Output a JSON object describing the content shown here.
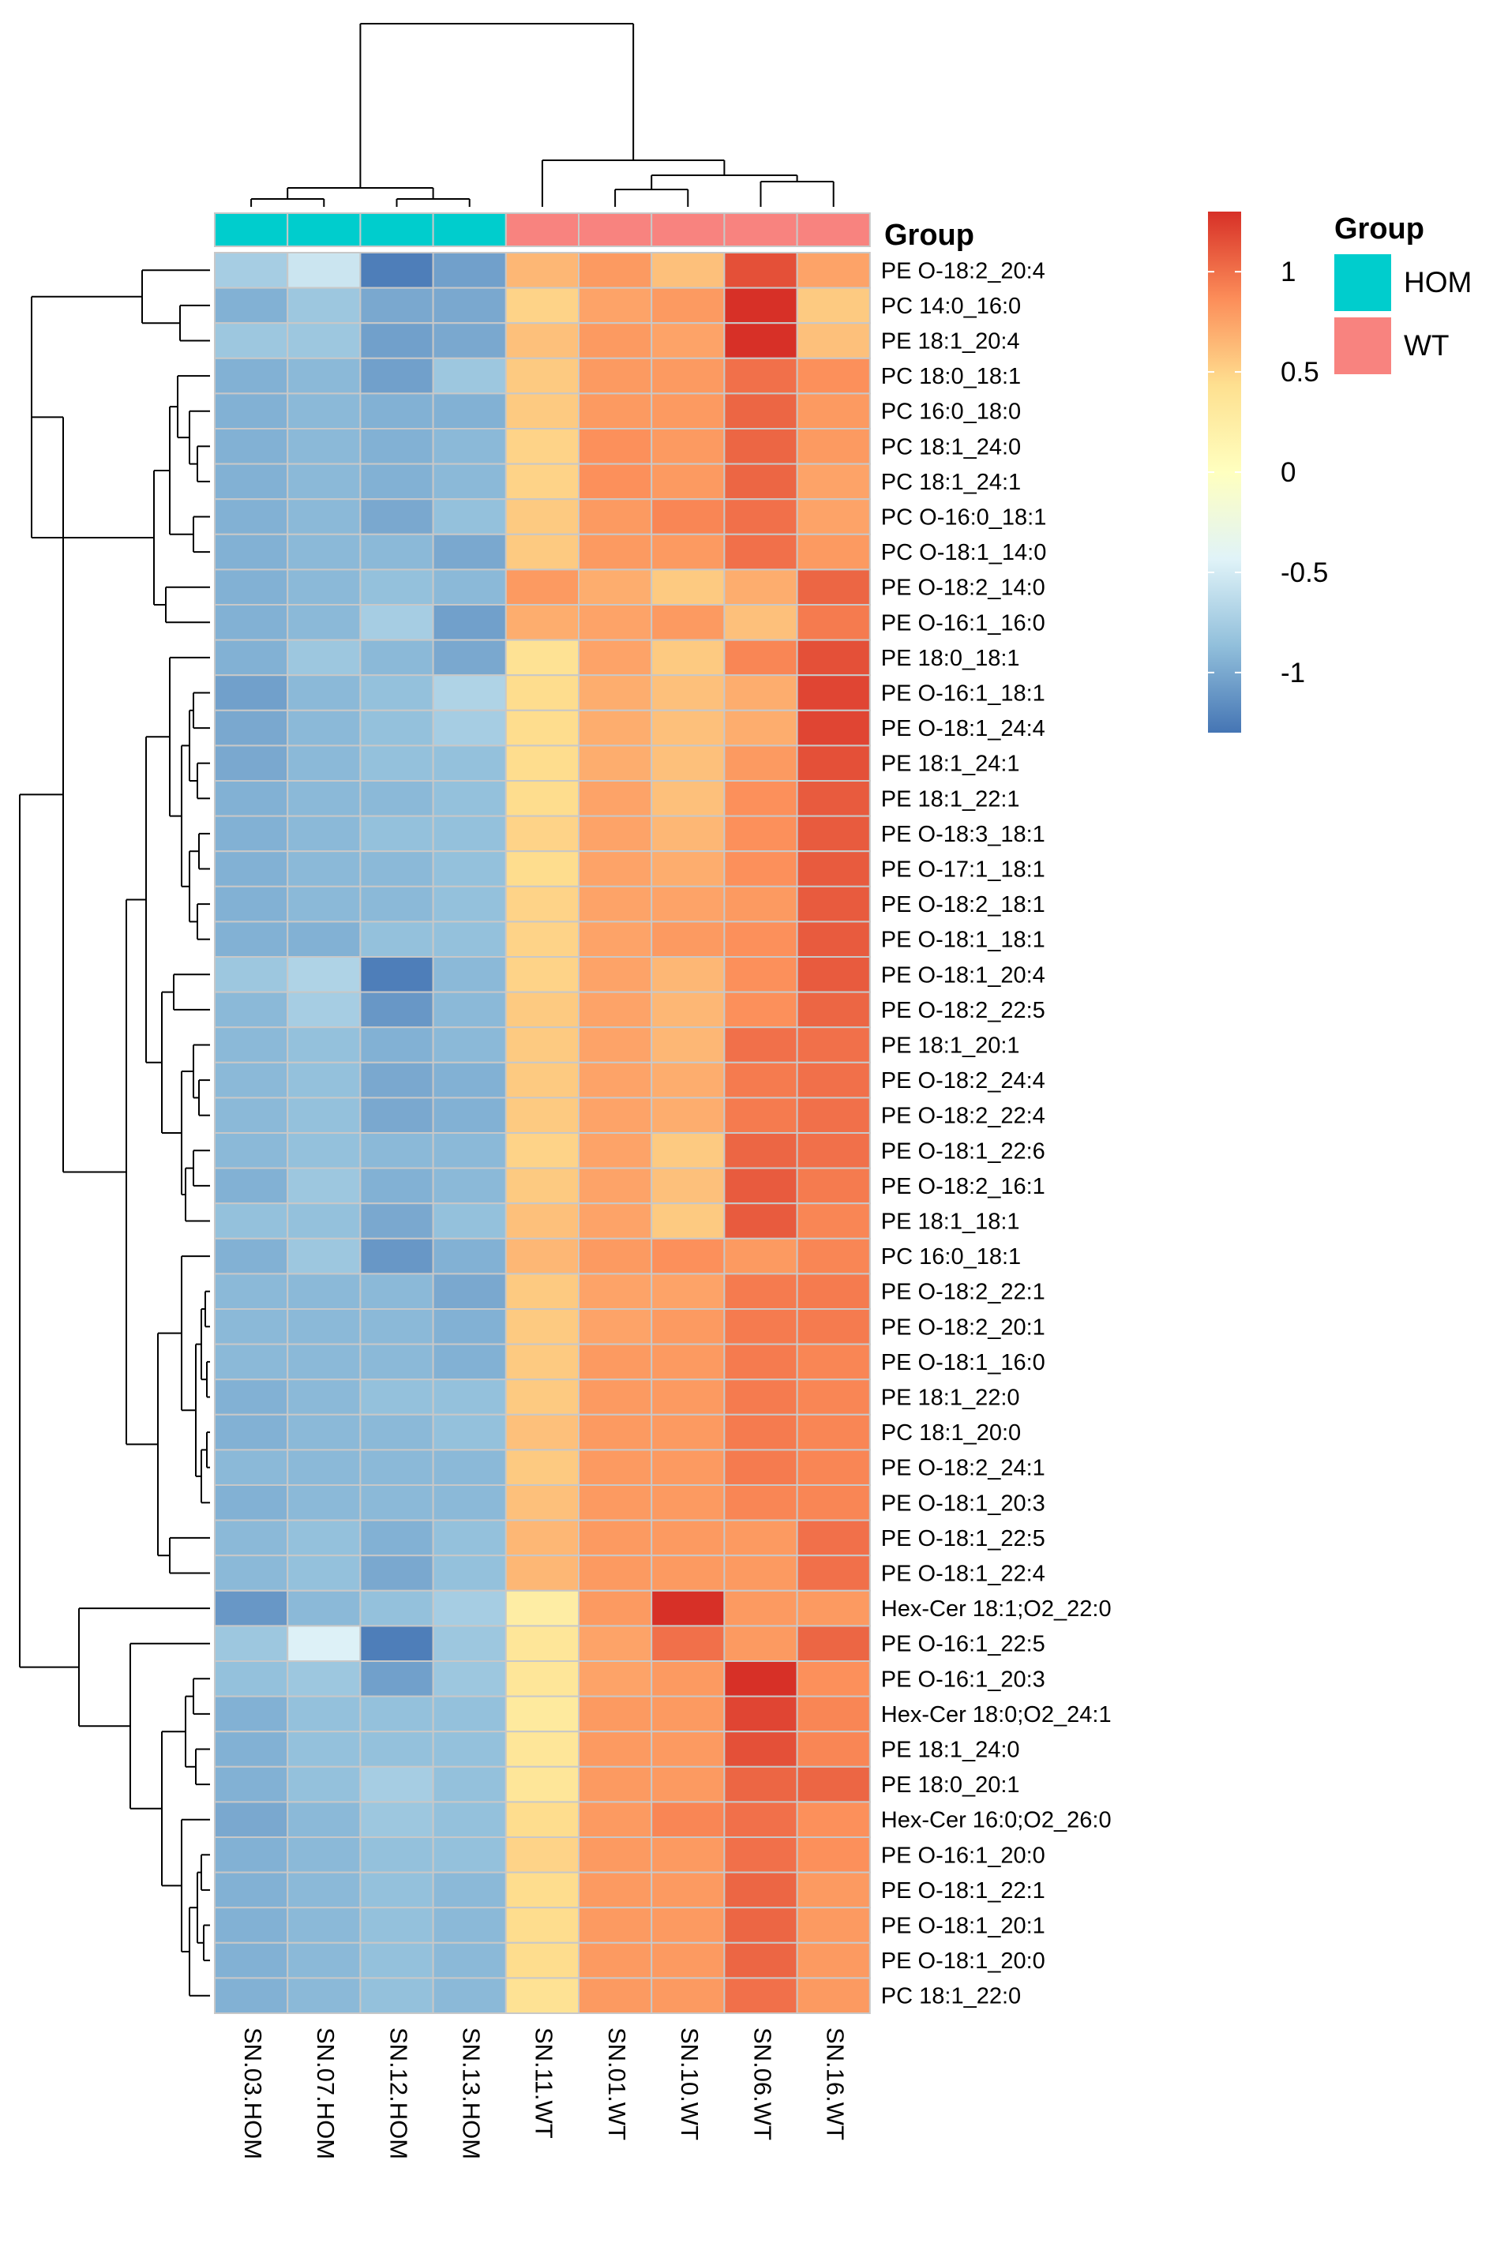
{
  "chart_data": {
    "type": "heatmap",
    "title": "",
    "columns": [
      "SN.03.HOM",
      "SN.07.HOM",
      "SN.12.HOM",
      "SN.13.HOM",
      "SN.11.WT",
      "SN.01.WT",
      "SN.10.WT",
      "SN.06.WT",
      "SN.16.WT"
    ],
    "column_groups": [
      "HOM",
      "HOM",
      "HOM",
      "HOM",
      "WT",
      "WT",
      "WT",
      "WT",
      "WT"
    ],
    "rows": [
      "PE O-18:2_20:4",
      "PC 14:0_16:0",
      "PE 18:1_20:4",
      "PC 18:0_18:1",
      "PC 16:0_18:0",
      "PC 18:1_24:0",
      "PC 18:1_24:1",
      "PC O-16:0_18:1",
      "PC O-18:1_14:0",
      "PE O-18:2_14:0",
      "PE O-16:1_16:0",
      "PE 18:0_18:1",
      "PE O-16:1_18:1",
      "PE O-18:1_24:4",
      "PE 18:1_24:1",
      "PE 18:1_22:1",
      "PE O-18:3_18:1",
      "PE O-17:1_18:1",
      "PE O-18:2_18:1",
      "PE O-18:1_18:1",
      "PE O-18:1_20:4",
      "PE O-18:2_22:5",
      "PE 18:1_20:1",
      "PE O-18:2_24:4",
      "PE O-18:2_22:4",
      "PE O-18:1_22:6",
      "PE O-18:2_16:1",
      "PE 18:1_18:1",
      "PC 16:0_18:1",
      "PE O-18:2_22:1",
      "PE O-18:2_20:1",
      "PE O-18:1_16:0",
      "PE 18:1_22:0",
      "PC 18:1_20:0",
      "PE O-18:2_24:1",
      "PE O-18:1_20:3",
      "PE O-18:1_22:5",
      "PE O-18:1_22:4",
      "Hex-Cer 18:1;O2_22:0",
      "PE O-16:1_22:5",
      "PE O-16:1_20:3",
      "Hex-Cer 18:0;O2_24:1",
      "PE 18:1_24:0",
      "PE 18:0_20:1",
      "Hex-Cer 16:0;O2_26:0",
      "PE O-16:1_20:0",
      "PE O-18:1_22:1",
      "PE O-18:1_20:1",
      "PE O-18:1_20:0",
      "PC 18:1_22:0"
    ],
    "values": [
      [
        -0.75,
        -0.55,
        -1.25,
        -1.05,
        0.65,
        0.8,
        0.6,
        1.15,
        0.75
      ],
      [
        -0.95,
        -0.8,
        -1.0,
        -1.0,
        0.5,
        0.75,
        0.8,
        1.3,
        0.55
      ],
      [
        -0.8,
        -0.8,
        -1.05,
        -1.0,
        0.6,
        0.8,
        0.75,
        1.3,
        0.6
      ],
      [
        -0.95,
        -0.9,
        -1.05,
        -0.8,
        0.55,
        0.8,
        0.8,
        1.0,
        0.85
      ],
      [
        -0.95,
        -0.9,
        -0.95,
        -0.95,
        0.55,
        0.8,
        0.8,
        1.05,
        0.8
      ],
      [
        -0.95,
        -0.9,
        -0.95,
        -0.9,
        0.5,
        0.85,
        0.8,
        1.05,
        0.8
      ],
      [
        -0.95,
        -0.9,
        -0.95,
        -0.9,
        0.5,
        0.85,
        0.8,
        1.05,
        0.75
      ],
      [
        -0.95,
        -0.9,
        -1.0,
        -0.85,
        0.55,
        0.8,
        0.9,
        1.0,
        0.75
      ],
      [
        -0.95,
        -0.9,
        -0.9,
        -1.0,
        0.55,
        0.8,
        0.8,
        1.0,
        0.8
      ],
      [
        -0.95,
        -0.9,
        -0.85,
        -0.9,
        0.8,
        0.7,
        0.55,
        0.7,
        1.05
      ],
      [
        -0.95,
        -0.9,
        -0.75,
        -1.05,
        0.7,
        0.75,
        0.8,
        0.6,
        0.95
      ],
      [
        -0.95,
        -0.8,
        -0.9,
        -1.0,
        0.4,
        0.75,
        0.55,
        0.9,
        1.15
      ],
      [
        -1.05,
        -0.9,
        -0.85,
        -0.7,
        0.45,
        0.7,
        0.6,
        0.7,
        1.2
      ],
      [
        -1.0,
        -0.9,
        -0.85,
        -0.75,
        0.45,
        0.7,
        0.6,
        0.7,
        1.2
      ],
      [
        -1.0,
        -0.9,
        -0.85,
        -0.85,
        0.45,
        0.7,
        0.6,
        0.8,
        1.15
      ],
      [
        -0.95,
        -0.9,
        -0.9,
        -0.85,
        0.45,
        0.75,
        0.6,
        0.85,
        1.1
      ],
      [
        -0.95,
        -0.9,
        -0.85,
        -0.85,
        0.5,
        0.75,
        0.65,
        0.85,
        1.1
      ],
      [
        -0.95,
        -0.9,
        -0.9,
        -0.85,
        0.45,
        0.75,
        0.7,
        0.85,
        1.1
      ],
      [
        -0.95,
        -0.9,
        -0.9,
        -0.85,
        0.5,
        0.75,
        0.75,
        0.8,
        1.1
      ],
      [
        -0.95,
        -0.95,
        -0.85,
        -0.85,
        0.5,
        0.75,
        0.8,
        0.85,
        1.1
      ],
      [
        -0.8,
        -0.7,
        -1.25,
        -0.9,
        0.5,
        0.75,
        0.65,
        0.85,
        1.1
      ],
      [
        -0.9,
        -0.75,
        -1.1,
        -0.9,
        0.55,
        0.75,
        0.65,
        0.85,
        1.05
      ],
      [
        -0.9,
        -0.85,
        -0.95,
        -0.9,
        0.55,
        0.75,
        0.65,
        1.0,
        1.0
      ],
      [
        -0.9,
        -0.85,
        -1.0,
        -0.95,
        0.55,
        0.75,
        0.7,
        0.95,
        1.0
      ],
      [
        -0.9,
        -0.85,
        -1.0,
        -0.95,
        0.55,
        0.75,
        0.7,
        0.95,
        1.0
      ],
      [
        -0.9,
        -0.85,
        -0.9,
        -0.9,
        0.5,
        0.75,
        0.55,
        1.05,
        1.0
      ],
      [
        -0.95,
        -0.8,
        -0.95,
        -0.9,
        0.55,
        0.75,
        0.6,
        1.1,
        0.95
      ],
      [
        -0.85,
        -0.85,
        -1.0,
        -0.85,
        0.6,
        0.75,
        0.55,
        1.1,
        0.9
      ],
      [
        -0.95,
        -0.8,
        -1.1,
        -0.95,
        0.65,
        0.8,
        0.85,
        0.8,
        0.9
      ],
      [
        -0.9,
        -0.9,
        -0.9,
        -1.0,
        0.55,
        0.75,
        0.75,
        0.95,
        0.95
      ],
      [
        -0.9,
        -0.9,
        -0.9,
        -0.95,
        0.55,
        0.75,
        0.8,
        0.95,
        0.95
      ],
      [
        -0.9,
        -0.9,
        -0.9,
        -0.95,
        0.55,
        0.8,
        0.8,
        0.95,
        0.9
      ],
      [
        -0.95,
        -0.9,
        -0.85,
        -0.85,
        0.55,
        0.8,
        0.8,
        0.95,
        0.9
      ],
      [
        -0.95,
        -0.9,
        -0.9,
        -0.85,
        0.6,
        0.8,
        0.8,
        0.95,
        0.9
      ],
      [
        -0.9,
        -0.9,
        -0.9,
        -0.9,
        0.55,
        0.8,
        0.8,
        0.95,
        0.9
      ],
      [
        -0.95,
        -0.9,
        -0.9,
        -0.9,
        0.6,
        0.8,
        0.8,
        0.9,
        0.9
      ],
      [
        -0.9,
        -0.85,
        -0.95,
        -0.85,
        0.65,
        0.8,
        0.8,
        0.8,
        1.0
      ],
      [
        -0.9,
        -0.85,
        -1.0,
        -0.85,
        0.65,
        0.8,
        0.8,
        0.8,
        1.0
      ],
      [
        -1.1,
        -0.9,
        -0.85,
        -0.75,
        0.25,
        0.8,
        1.3,
        0.8,
        0.8
      ],
      [
        -0.8,
        -0.45,
        -1.25,
        -0.8,
        0.35,
        0.75,
        1.0,
        0.8,
        1.05
      ],
      [
        -0.85,
        -0.8,
        -1.05,
        -0.8,
        0.35,
        0.75,
        0.8,
        1.3,
        0.85
      ],
      [
        -0.95,
        -0.85,
        -0.85,
        -0.85,
        0.3,
        0.8,
        0.8,
        1.2,
        0.9
      ],
      [
        -0.95,
        -0.85,
        -0.85,
        -0.85,
        0.35,
        0.8,
        0.8,
        1.15,
        0.9
      ],
      [
        -0.95,
        -0.85,
        -0.75,
        -0.85,
        0.35,
        0.8,
        0.8,
        1.05,
        1.05
      ],
      [
        -1.0,
        -0.9,
        -0.8,
        -0.85,
        0.45,
        0.8,
        0.9,
        1.0,
        0.85
      ],
      [
        -0.95,
        -0.9,
        -0.85,
        -0.85,
        0.5,
        0.8,
        0.8,
        1.0,
        0.85
      ],
      [
        -0.95,
        -0.9,
        -0.85,
        -0.9,
        0.45,
        0.8,
        0.8,
        1.05,
        0.8
      ],
      [
        -0.95,
        -0.9,
        -0.85,
        -0.9,
        0.45,
        0.8,
        0.8,
        1.05,
        0.8
      ],
      [
        -0.95,
        -0.9,
        -0.85,
        -0.9,
        0.45,
        0.8,
        0.8,
        1.05,
        0.8
      ],
      [
        -0.95,
        -0.9,
        -0.85,
        -0.9,
        0.4,
        0.8,
        0.8,
        1.0,
        0.8
      ]
    ],
    "color_scale": {
      "range": [
        -1.3,
        1.3
      ],
      "ticks": [
        1,
        0.5,
        0,
        -0.5,
        -1
      ],
      "tick_labels": [
        "1",
        "0.5",
        "0",
        "-0.5",
        "-1"
      ],
      "stops": [
        "#4575b4",
        "#91bfdb",
        "#e0f3f8",
        "#ffffbf",
        "#fee090",
        "#fc8d59",
        "#d73027"
      ]
    },
    "annotation": {
      "title": "Group",
      "levels": [
        "HOM",
        "WT"
      ],
      "colors": [
        "#00cdcd",
        "#f8837f"
      ]
    },
    "dendrograms": {
      "columns": "top",
      "rows": "left"
    }
  }
}
